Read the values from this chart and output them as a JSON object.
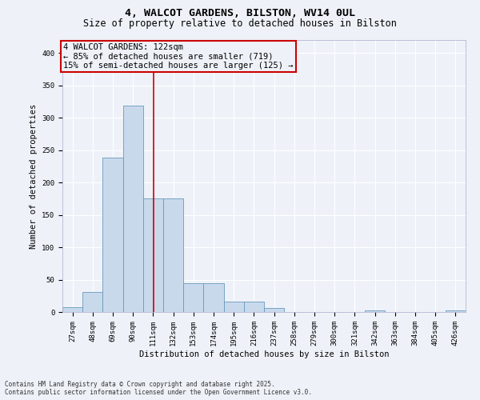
{
  "title_line1": "4, WALCOT GARDENS, BILSTON, WV14 0UL",
  "title_line2": "Size of property relative to detached houses in Bilston",
  "xlabel": "Distribution of detached houses by size in Bilston",
  "ylabel": "Number of detached properties",
  "footer_line1": "Contains HM Land Registry data © Crown copyright and database right 2025.",
  "footer_line2": "Contains public sector information licensed under the Open Government Licence v3.0.",
  "bar_edges": [
    27,
    48,
    69,
    90,
    111,
    132,
    153,
    174,
    195,
    216,
    237,
    258,
    279,
    300,
    321,
    342,
    363,
    384,
    405,
    426,
    447
  ],
  "bar_heights": [
    8,
    31,
    238,
    319,
    175,
    175,
    45,
    45,
    16,
    16,
    6,
    0,
    0,
    0,
    0,
    3,
    0,
    0,
    0,
    2,
    0
  ],
  "bar_color": "#c9d9ec",
  "bar_edgecolor": "#6699bb",
  "vline_x": 122,
  "vline_color": "#cc0000",
  "annotation_text": "4 WALCOT GARDENS: 122sqm\n← 85% of detached houses are smaller (719)\n15% of semi-detached houses are larger (125) →",
  "annotation_box_edgecolor": "#cc0000",
  "annotation_fontsize": 7.5,
  "ylim": [
    0,
    420
  ],
  "yticks": [
    0,
    50,
    100,
    150,
    200,
    250,
    300,
    350,
    400
  ],
  "background_color": "#eef2f8",
  "grid_color": "#ffffff",
  "title_fontsize": 9.5,
  "subtitle_fontsize": 8.5,
  "axis_label_fontsize": 7.5,
  "tick_fontsize": 6.5
}
